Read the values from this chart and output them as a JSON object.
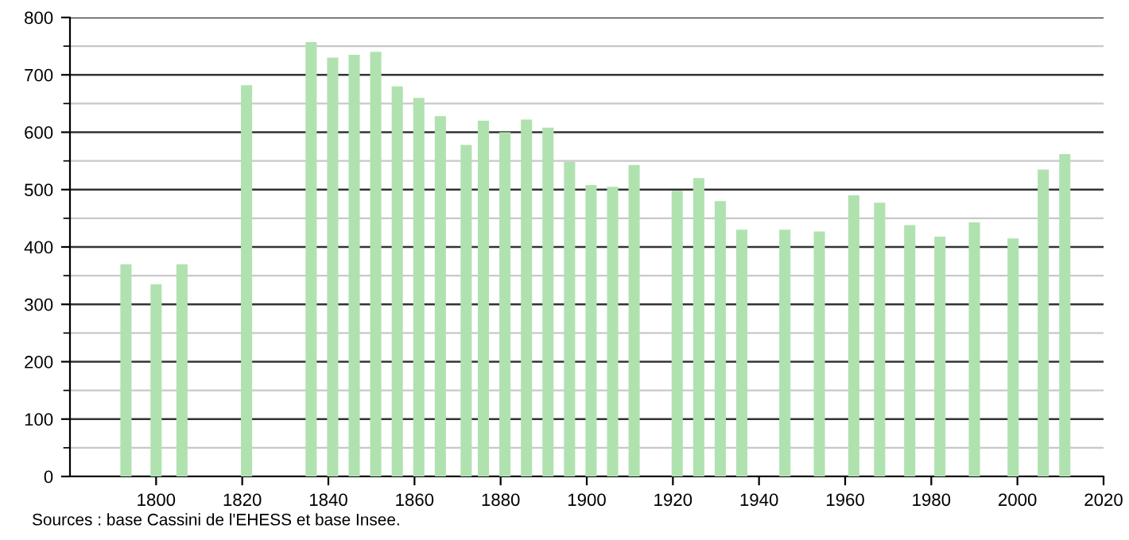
{
  "chart_data": {
    "type": "bar",
    "color": "#b0e2b0",
    "x": [
      1793,
      1800,
      1806,
      1821,
      1836,
      1841,
      1846,
      1851,
      1856,
      1861,
      1866,
      1872,
      1876,
      1881,
      1886,
      1891,
      1896,
      1901,
      1906,
      1911,
      1921,
      1926,
      1931,
      1936,
      1946,
      1954,
      1962,
      1968,
      1975,
      1982,
      1990,
      1999,
      2006,
      2011
    ],
    "values": [
      370,
      335,
      370,
      682,
      757,
      730,
      735,
      740,
      680,
      660,
      628,
      578,
      620,
      600,
      622,
      608,
      548,
      508,
      505,
      543,
      498,
      520,
      480,
      430,
      430,
      427,
      490,
      477,
      438,
      418,
      443,
      415,
      535,
      562
    ],
    "xlim": [
      1780,
      2020
    ],
    "xticks": [
      1800,
      1820,
      1840,
      1860,
      1880,
      1900,
      1920,
      1940,
      1960,
      1980,
      2000,
      2020
    ],
    "ylim": [
      0,
      800
    ],
    "yticks": [
      0,
      100,
      200,
      300,
      400,
      500,
      600,
      700,
      800
    ],
    "grid": "y",
    "annotations": [
      "Sources : base Cassini de l'EHESS et base Insee."
    ]
  }
}
